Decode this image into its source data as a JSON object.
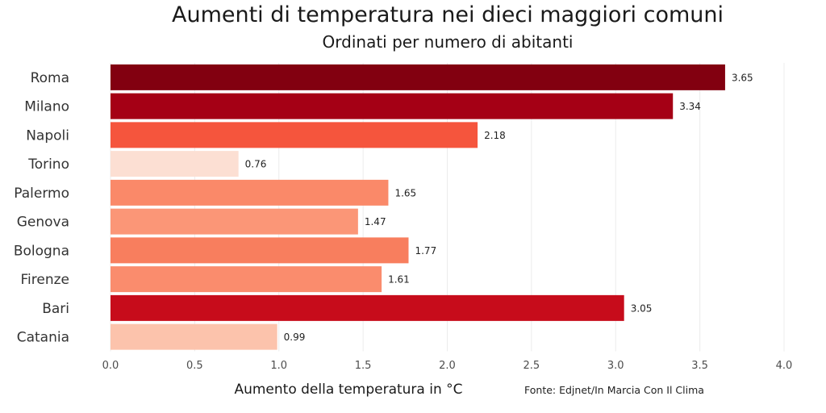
{
  "chart_data": {
    "type": "bar",
    "orientation": "horizontal",
    "title": "Aumenti di temperatura nei dieci maggiori comuni",
    "subtitle": "Ordinati per numero di abitanti",
    "xlabel": "Aumento della temperatura in °C",
    "ylabel": "",
    "xlim": [
      0,
      4
    ],
    "xticks": [
      "0.0",
      "0.5",
      "1.0",
      "1.5",
      "2.0",
      "2.5",
      "3.0",
      "3.5",
      "4.0"
    ],
    "grid": true,
    "legend": "none",
    "categories": [
      "Roma",
      "Milano",
      "Napoli",
      "Torino",
      "Palermo",
      "Genova",
      "Bologna",
      "Firenze",
      "Bari",
      "Catania"
    ],
    "values": [
      3.65,
      3.34,
      2.18,
      0.76,
      1.65,
      1.47,
      1.77,
      1.61,
      3.05,
      0.99
    ],
    "value_labels": [
      "3.65",
      "3.34",
      "2.18",
      "0.76",
      "1.65",
      "1.47",
      "1.77",
      "1.61",
      "3.05",
      "0.99"
    ],
    "colors": [
      "#820010",
      "#a50015",
      "#f5553d",
      "#fcdfd3",
      "#fa8969",
      "#fb9677",
      "#f87e5e",
      "#fa8c6d",
      "#c70c1b",
      "#fcc3ac"
    ],
    "source": "Fonte: Edjnet/In Marcia Con Il Clima"
  }
}
